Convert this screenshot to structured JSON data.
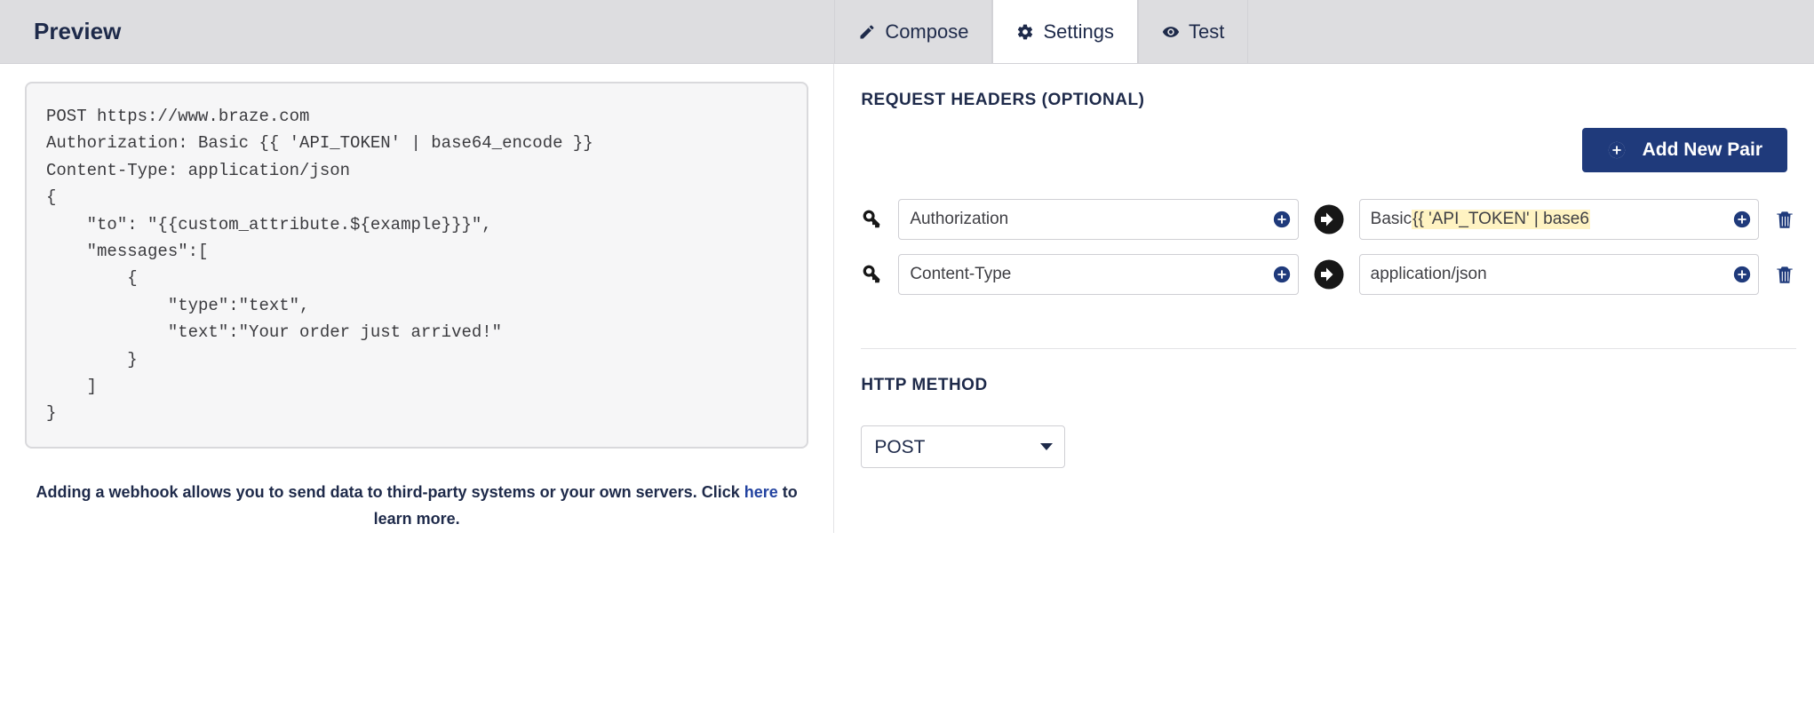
{
  "topbar": {
    "preview_title": "Preview",
    "tabs": {
      "compose": "Compose",
      "settings": "Settings",
      "test": "Test"
    },
    "active_tab": "settings"
  },
  "preview": {
    "code": "POST https://www.braze.com\nAuthorization: Basic {{ 'API_TOKEN' | base64_encode }}\nContent-Type: application/json\n{\n    \"to\": \"{{custom_attribute.${example}}}\",\n    \"messages\":[\n        {\n            \"type\":\"text\",\n            \"text\":\"Your order just arrived!\"\n        }\n    ]\n}",
    "help_pre": "Adding a webhook allows you to send data to third-party systems or your own servers. Click ",
    "help_link": "here",
    "help_post": " to learn more."
  },
  "settings": {
    "headers_label": "REQUEST HEADERS (OPTIONAL)",
    "add_pair_label": "Add New Pair",
    "headers": [
      {
        "key": "Authorization",
        "value_prefix": "Basic ",
        "value_hilite": "{{ 'API_TOKEN' | base6",
        "value_suffix": ""
      },
      {
        "key": "Content-Type",
        "value_prefix": "application/json",
        "value_hilite": "",
        "value_suffix": ""
      }
    ],
    "method_label": "HTTP METHOD",
    "method_value": "POST"
  },
  "colors": {
    "brand": "#1f3a7b",
    "topbar_bg": "#dddde0",
    "code_bg": "#f6f6f7",
    "highlight": "#fff3c2"
  }
}
